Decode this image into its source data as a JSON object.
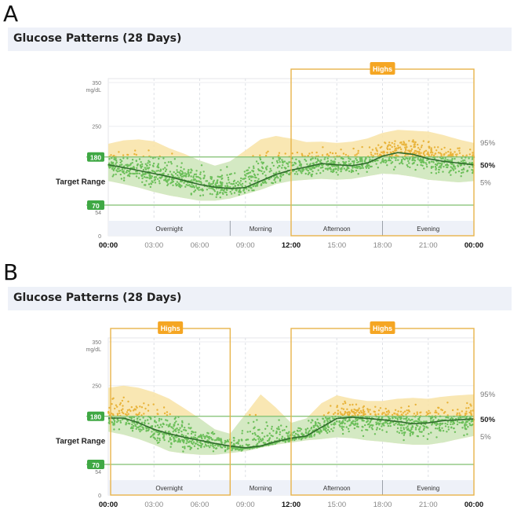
{
  "colors": {
    "in_range": "#6cbf5a",
    "in_range_band": "#cfe9c4",
    "high": "#e8b33a",
    "high_band": "#f8e3a6",
    "median": "#2f6b2c",
    "target_line": "#7fbf6f",
    "target_label_bg": "#3fa844",
    "highs_box": "#e8b44a",
    "highs_label_bg": "#f5a623",
    "period_bg": "#eef1f8",
    "title_bg": "#eef1f8"
  },
  "chart_data": [
    {
      "panel": "A",
      "type": "scatter",
      "title": "Glucose Patterns (28 Days)",
      "ylabel": "mg/dL",
      "ylim": [
        0,
        350
      ],
      "y_ticks": [
        0,
        54,
        70,
        180,
        250,
        350
      ],
      "y_tick_labels": [
        "0",
        "54",
        "70",
        "180",
        "250",
        "350"
      ],
      "target_range": {
        "low": 70,
        "high": 180,
        "label": "Target Range",
        "low_label": "70",
        "high_label": "180"
      },
      "x_ticks": [
        0,
        3,
        6,
        9,
        12,
        15,
        18,
        21,
        24
      ],
      "x_tick_labels": [
        "00:00",
        "03:00",
        "06:00",
        "09:00",
        "12:00",
        "15:00",
        "18:00",
        "21:00",
        "00:00"
      ],
      "x_bold_ticks": [
        "00:00",
        "12:00"
      ],
      "periods": [
        {
          "label": "Overnight",
          "start": 0,
          "end": 8
        },
        {
          "label": "Morning",
          "start": 8,
          "end": 12
        },
        {
          "label": "Afternoon",
          "start": 12,
          "end": 18
        },
        {
          "label": "Evening",
          "start": 18,
          "end": 24
        }
      ],
      "highs": [
        {
          "label": "Highs",
          "start": 12,
          "end": 24
        }
      ],
      "percentile_labels": {
        "p95": "95%",
        "p50": "50%",
        "p5": "5%"
      },
      "hours": [
        0,
        1,
        2,
        3,
        4,
        5,
        6,
        7,
        8,
        9,
        10,
        11,
        12,
        13,
        14,
        15,
        16,
        17,
        18,
        19,
        20,
        21,
        22,
        23,
        24
      ],
      "median": [
        162,
        156,
        149,
        142,
        135,
        126,
        117,
        111,
        108,
        110,
        125,
        140,
        150,
        157,
        165,
        162,
        160,
        166,
        182,
        190,
        186,
        176,
        170,
        166,
        162
      ],
      "p95": [
        210,
        218,
        220,
        216,
        200,
        187,
        172,
        160,
        170,
        195,
        220,
        228,
        222,
        214,
        215,
        212,
        215,
        222,
        235,
        242,
        240,
        238,
        230,
        220,
        212
      ],
      "p5": [
        125,
        118,
        110,
        100,
        92,
        86,
        80,
        80,
        85,
        95,
        105,
        118,
        125,
        128,
        130,
        128,
        130,
        136,
        142,
        140,
        135,
        128,
        125,
        122,
        125
      ]
    },
    {
      "panel": "B",
      "type": "scatter",
      "title": "Glucose Patterns (28 Days)",
      "ylabel": "mg/dL",
      "ylim": [
        0,
        350
      ],
      "y_ticks": [
        0,
        54,
        70,
        180,
        250,
        350
      ],
      "y_tick_labels": [
        "0",
        "54",
        "70",
        "180",
        "250",
        "350"
      ],
      "target_range": {
        "low": 70,
        "high": 180,
        "label": "Target Range",
        "low_label": "70",
        "high_label": "180"
      },
      "x_ticks": [
        0,
        3,
        6,
        9,
        12,
        15,
        18,
        21,
        24
      ],
      "x_tick_labels": [
        "00:00",
        "03:00",
        "06:00",
        "09:00",
        "12:00",
        "15:00",
        "18:00",
        "21:00",
        "00:00"
      ],
      "x_bold_ticks": [
        "00:00",
        "12:00"
      ],
      "periods": [
        {
          "label": "Overnight",
          "start": 0,
          "end": 8
        },
        {
          "label": "Morning",
          "start": 8,
          "end": 12
        },
        {
          "label": "Afternoon",
          "start": 12,
          "end": 18
        },
        {
          "label": "Evening",
          "start": 18,
          "end": 24
        }
      ],
      "highs": [
        {
          "label": "Highs",
          "start": 0,
          "end": 8
        },
        {
          "label": "Highs",
          "start": 12,
          "end": 24
        }
      ],
      "percentile_labels": {
        "p95": "95%",
        "p50": "50%",
        "p5": "5%"
      },
      "hours": [
        0,
        1,
        2,
        3,
        4,
        5,
        6,
        7,
        8,
        9,
        10,
        11,
        12,
        13,
        14,
        15,
        16,
        17,
        18,
        19,
        20,
        21,
        22,
        23,
        24
      ],
      "median": [
        176,
        176,
        165,
        150,
        140,
        132,
        125,
        118,
        112,
        108,
        112,
        122,
        130,
        135,
        155,
        175,
        178,
        175,
        172,
        168,
        163,
        165,
        170,
        172,
        174
      ],
      "p95": [
        245,
        250,
        245,
        235,
        220,
        198,
        175,
        150,
        140,
        185,
        230,
        200,
        165,
        175,
        210,
        228,
        220,
        215,
        215,
        220,
        222,
        220,
        225,
        228,
        230
      ],
      "p5": [
        145,
        138,
        128,
        115,
        100,
        95,
        92,
        92,
        96,
        100,
        108,
        115,
        120,
        125,
        128,
        132,
        130,
        125,
        122,
        118,
        115,
        115,
        120,
        128,
        135
      ]
    }
  ]
}
